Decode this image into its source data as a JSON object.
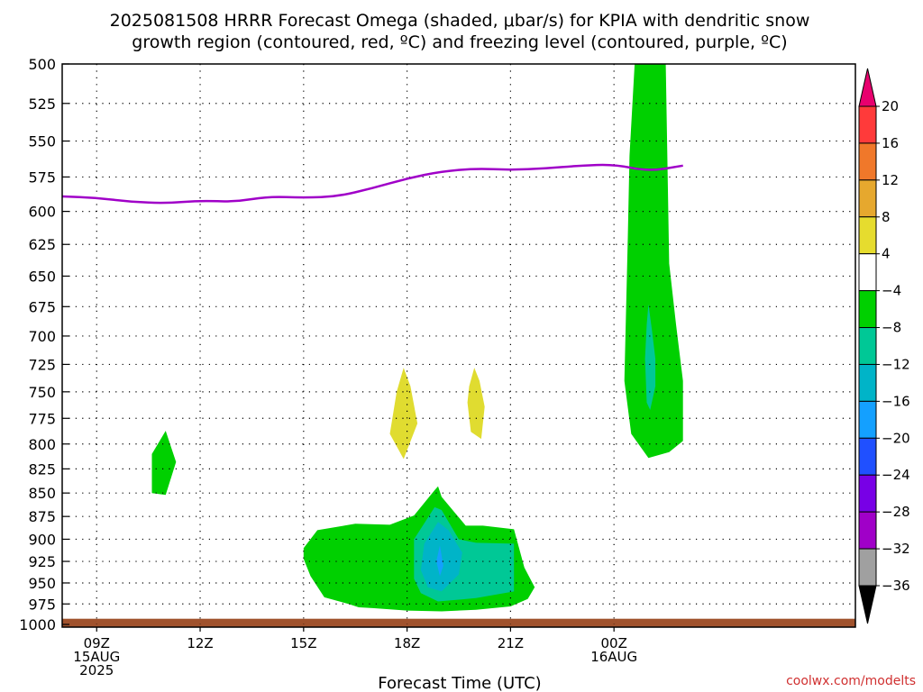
{
  "chart_data": {
    "type": "area",
    "title_lines": [
      "2025081508 HRRR Forecast Omega (shaded, μbar/s) for KPIA with dendritic snow",
      "growth region (contoured, red, ºC) and freezing level (contoured, purple, ºC)"
    ],
    "xlabel": "Forecast Time (UTC)",
    "credit": "coolwx.com/modelts",
    "x_axis": {
      "unit": "hours from 08Z 15 Aug 2025",
      "range": [
        0,
        23
      ],
      "ticks": [
        {
          "hour": 1,
          "lines": [
            "09Z",
            "15AUG",
            "2025"
          ]
        },
        {
          "hour": 4,
          "lines": [
            "12Z"
          ]
        },
        {
          "hour": 7,
          "lines": [
            "15Z"
          ]
        },
        {
          "hour": 10,
          "lines": [
            "18Z"
          ]
        },
        {
          "hour": 13,
          "lines": [
            "21Z"
          ]
        },
        {
          "hour": 16,
          "lines": [
            "00Z",
            "16AUG"
          ]
        }
      ]
    },
    "y_axis": {
      "label": "",
      "unit": "hPa",
      "range": [
        1000,
        500
      ],
      "scale": "log",
      "ticks": [
        500,
        525,
        550,
        575,
        600,
        625,
        650,
        675,
        700,
        725,
        750,
        775,
        800,
        825,
        850,
        875,
        900,
        925,
        950,
        975,
        1000
      ]
    },
    "grid": true,
    "freezing_level": {
      "color": "#a000c8",
      "points": [
        [
          0,
          589
        ],
        [
          1,
          590
        ],
        [
          2,
          593
        ],
        [
          3,
          594
        ],
        [
          4,
          592
        ],
        [
          5,
          593
        ],
        [
          6,
          589
        ],
        [
          7,
          590
        ],
        [
          8,
          589
        ],
        [
          9,
          583
        ],
        [
          10,
          576
        ],
        [
          11,
          571
        ],
        [
          12,
          569
        ],
        [
          13,
          570
        ],
        [
          14,
          569
        ],
        [
          15,
          567
        ],
        [
          16,
          566
        ],
        [
          17,
          571
        ],
        [
          18,
          567
        ]
      ]
    },
    "ground": {
      "color": "#a0522d",
      "top_hpa": 993
    },
    "omega_regions": [
      {
        "level": -4,
        "color": "#00d000",
        "polygon": [
          [
            2.6,
            810
          ],
          [
            2.6,
            850
          ],
          [
            3.0,
            852
          ],
          [
            3.3,
            818
          ],
          [
            3.0,
            787
          ]
        ]
      },
      {
        "level": -4,
        "color": "#00d000",
        "polygon": [
          [
            16.6,
            500
          ],
          [
            16.45,
            560
          ],
          [
            16.4,
            620
          ],
          [
            16.3,
            740
          ],
          [
            16.5,
            790
          ],
          [
            17.0,
            814
          ],
          [
            17.6,
            808
          ],
          [
            18.0,
            797
          ],
          [
            18.0,
            740
          ],
          [
            17.8,
            690
          ],
          [
            17.6,
            640
          ],
          [
            17.5,
            500
          ]
        ]
      },
      {
        "level": 4,
        "color": "#e0dc30",
        "polygon": [
          [
            9.5,
            790
          ],
          [
            9.9,
            815
          ],
          [
            10.3,
            780
          ],
          [
            10.1,
            745
          ],
          [
            9.9,
            728
          ],
          [
            9.7,
            750
          ]
        ]
      },
      {
        "level": 4,
        "color": "#e0dc30",
        "polygon": [
          [
            11.75,
            760
          ],
          [
            11.85,
            788
          ],
          [
            12.15,
            795
          ],
          [
            12.25,
            764
          ],
          [
            12.1,
            740
          ],
          [
            11.95,
            728
          ],
          [
            11.8,
            745
          ]
        ]
      },
      {
        "level": -4,
        "color": "#00d000",
        "polygon": [
          [
            7.0,
            922
          ],
          [
            7.2,
            942
          ],
          [
            7.6,
            967
          ],
          [
            8.3,
            975
          ],
          [
            8.6,
            979
          ],
          [
            9.0,
            980
          ],
          [
            10.0,
            983
          ],
          [
            11.0,
            984
          ],
          [
            12.0,
            982
          ],
          [
            13.0,
            978
          ],
          [
            13.5,
            969
          ],
          [
            13.7,
            955
          ],
          [
            13.4,
            932
          ],
          [
            13.1,
            889
          ],
          [
            12.2,
            885
          ],
          [
            11.7,
            885
          ],
          [
            11.0,
            854
          ],
          [
            10.9,
            843
          ],
          [
            10.8,
            847
          ],
          [
            10.2,
            874
          ],
          [
            9.5,
            884
          ],
          [
            8.5,
            883
          ],
          [
            7.4,
            890
          ],
          [
            7.0,
            910
          ]
        ]
      },
      {
        "level": -8,
        "color": "#00c896",
        "polygon": [
          [
            10.2,
            945
          ],
          [
            10.4,
            962
          ],
          [
            10.9,
            972
          ],
          [
            12.0,
            968
          ],
          [
            13.1,
            960
          ],
          [
            13.1,
            930
          ],
          [
            13.1,
            905
          ],
          [
            12.0,
            904
          ],
          [
            11.5,
            900
          ],
          [
            11.0,
            868
          ],
          [
            10.8,
            865
          ],
          [
            10.2,
            900
          ]
        ]
      },
      {
        "level": -12,
        "color": "#00b4c8",
        "polygon": [
          [
            10.4,
            935
          ],
          [
            10.6,
            955
          ],
          [
            11.0,
            960
          ],
          [
            11.5,
            940
          ],
          [
            11.6,
            915
          ],
          [
            11.2,
            890
          ],
          [
            10.9,
            881
          ],
          [
            10.5,
            905
          ]
        ]
      },
      {
        "level": -16,
        "color": "#14a0ff",
        "polygon": [
          [
            10.85,
            925
          ],
          [
            10.95,
            942
          ],
          [
            11.05,
            930
          ],
          [
            10.95,
            907
          ]
        ]
      },
      {
        "level": -8,
        "color": "#00c896",
        "polygon": [
          [
            16.9,
            720
          ],
          [
            16.95,
            760
          ],
          [
            17.05,
            767
          ],
          [
            17.2,
            745
          ],
          [
            17.2,
            720
          ],
          [
            17.1,
            695
          ],
          [
            17.0,
            673
          ],
          [
            16.95,
            690
          ]
        ]
      }
    ],
    "colorbar": {
      "labels": [
        "20",
        "16",
        "12",
        "8",
        "4",
        "−4",
        "−8",
        "−12",
        "−16",
        "−20",
        "−24",
        "−28",
        "−32",
        "−36"
      ],
      "colors": [
        "#e8006e",
        "#ff3a3a",
        "#f0782a",
        "#e6a82e",
        "#e6dc2e",
        "#ffffff",
        "#00d000",
        "#00c896",
        "#00b4c8",
        "#14a0ff",
        "#2050ff",
        "#7800e6",
        "#a000c8",
        "#a0a0a0",
        "#000000"
      ]
    }
  }
}
